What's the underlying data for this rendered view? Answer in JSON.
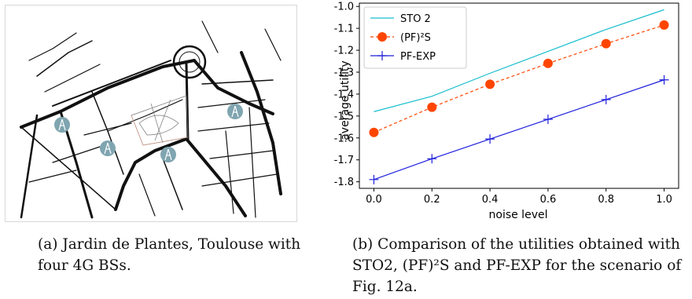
{
  "figure_a": {
    "caption": "(a) Jardin de Plantes, Toulouse with four 4G BSs.",
    "map": {
      "station_icon": "antenna-tower-icon",
      "station_color": "#7fa5b0",
      "road_color": "#111111"
    }
  },
  "figure_b": {
    "caption": "(b) Comparison of the utilities obtained with STO2, (PF)²S and PF-EXP for the scenario of Fig. 12a."
  },
  "chart_data": {
    "type": "line",
    "xlabel": "noise level",
    "ylabel": "average utility",
    "xlim": [
      -0.05,
      1.05
    ],
    "ylim": [
      -1.83,
      -0.985
    ],
    "xticks": [
      "0.0",
      "0.2",
      "0.4",
      "0.6",
      "0.8",
      "1.0"
    ],
    "yticks": [
      "-1.0",
      "-1.1",
      "-1.2",
      "-1.3",
      "-1.4",
      "-1.5",
      "-1.6",
      "-1.7",
      "-1.8"
    ],
    "x": [
      0.0,
      0.2,
      0.4,
      0.6,
      0.8,
      1.0
    ],
    "legend_position": "top-left",
    "grid": false,
    "series": [
      {
        "name": "STO 2",
        "values": [
          -1.48,
          -1.41,
          -1.305,
          -1.205,
          -1.105,
          -1.015
        ],
        "color": "#17becf",
        "style": "solid",
        "marker": "none"
      },
      {
        "name": "(PF)²S",
        "values": [
          -1.575,
          -1.46,
          -1.355,
          -1.26,
          -1.17,
          -1.085
        ],
        "color": "#ff4500",
        "style": "dashed",
        "marker": "circle"
      },
      {
        "name": "PF-EXP",
        "values": [
          -1.79,
          -1.695,
          -1.605,
          -1.515,
          -1.425,
          -1.335
        ],
        "color": "#1f1fdd",
        "style": "solid",
        "marker": "plus"
      }
    ]
  }
}
